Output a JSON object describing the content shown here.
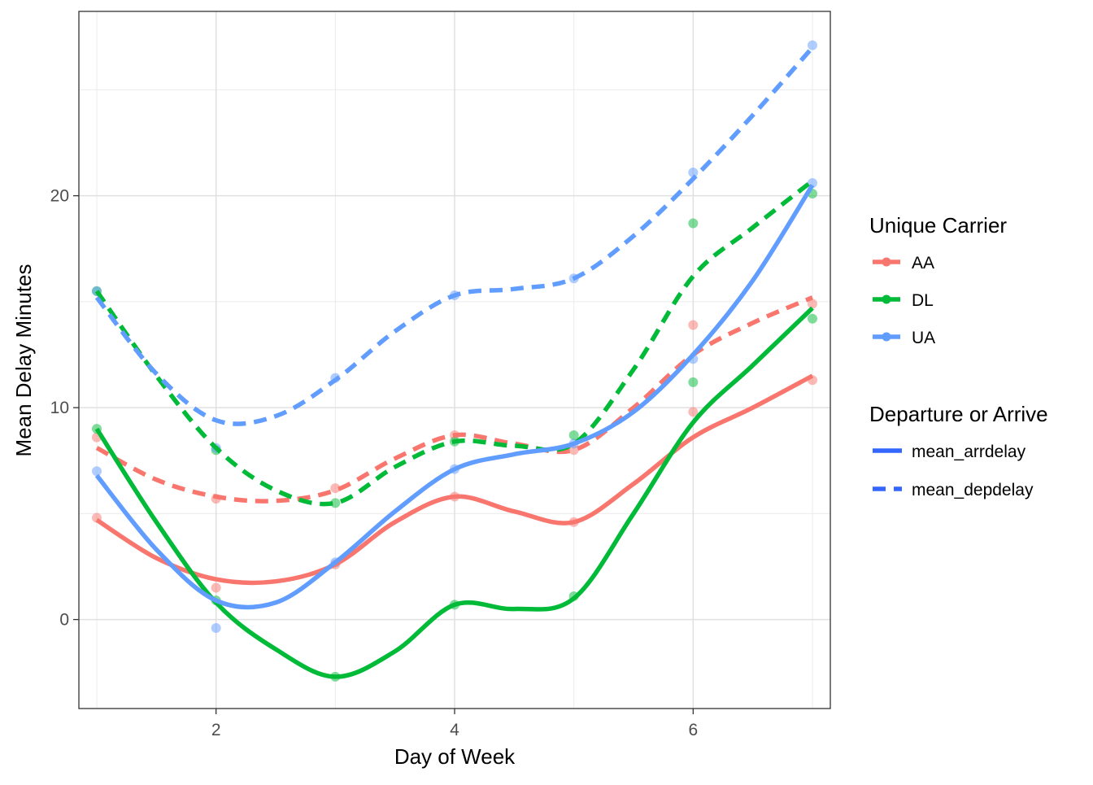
{
  "chart_data": {
    "type": "line",
    "xlabel": "Day of Week",
    "ylabel": "Mean Delay Minutes",
    "xlim": [
      0.85,
      7.15
    ],
    "ylim": [
      -4.2,
      28.7
    ],
    "x_ticks": [
      2,
      4,
      6
    ],
    "y_ticks": [
      0,
      10,
      20
    ],
    "x_tick_labels": [
      "2",
      "4",
      "6"
    ],
    "y_tick_labels": [
      "0",
      "10",
      "20"
    ],
    "grid": true,
    "legend_placement": "right",
    "carrier_legend_title": "Unique Carrier",
    "linetype_legend_title": "Departure or Arrive",
    "carriers": [
      {
        "name": "AA",
        "color": "#F8766D"
      },
      {
        "name": "DL",
        "color": "#00BA38"
      },
      {
        "name": "UA",
        "color": "#619CFF"
      }
    ],
    "linetypes": [
      {
        "name": "mean_arrdelay",
        "dash": "solid"
      },
      {
        "name": "mean_depdelay",
        "dash": "dashed"
      }
    ],
    "legend_key_color": "#3366FF",
    "x": [
      1,
      2,
      3,
      4,
      5,
      6,
      7
    ],
    "series": [
      {
        "carrier": "AA",
        "measure": "mean_arrdelay",
        "points": [
          4.8,
          1.5,
          2.6,
          5.8,
          4.6,
          9.8,
          11.3
        ],
        "smooth": [
          [
            1,
            4.7
          ],
          [
            1.5,
            2.9
          ],
          [
            2,
            1.9
          ],
          [
            2.5,
            1.8
          ],
          [
            3,
            2.6
          ],
          [
            3.5,
            4.6
          ],
          [
            4,
            5.8
          ],
          [
            4.5,
            5.1
          ],
          [
            5,
            4.6
          ],
          [
            5.5,
            6.4
          ],
          [
            6,
            8.6
          ],
          [
            6.5,
            10.0
          ],
          [
            7,
            11.5
          ]
        ]
      },
      {
        "carrier": "AA",
        "measure": "mean_depdelay",
        "points": [
          8.6,
          5.7,
          6.2,
          8.7,
          8.0,
          13.9,
          14.9
        ],
        "smooth": [
          [
            1,
            8.1
          ],
          [
            1.5,
            6.6
          ],
          [
            2,
            5.8
          ],
          [
            2.5,
            5.6
          ],
          [
            3,
            6.1
          ],
          [
            3.5,
            7.6
          ],
          [
            4,
            8.7
          ],
          [
            4.5,
            8.3
          ],
          [
            5,
            8.0
          ],
          [
            5.5,
            10.0
          ],
          [
            6,
            12.5
          ],
          [
            6.5,
            14.0
          ],
          [
            7,
            15.2
          ]
        ]
      },
      {
        "carrier": "DL",
        "measure": "mean_arrdelay",
        "points": [
          9.0,
          0.9,
          -2.7,
          0.7,
          1.1,
          11.2,
          14.2
        ],
        "smooth": [
          [
            1,
            9.0
          ],
          [
            1.5,
            4.6
          ],
          [
            2,
            0.8
          ],
          [
            2.5,
            -1.4
          ],
          [
            3,
            -2.7
          ],
          [
            3.5,
            -1.5
          ],
          [
            4,
            0.7
          ],
          [
            4.5,
            0.5
          ],
          [
            5,
            1.0
          ],
          [
            5.5,
            5.0
          ],
          [
            6,
            9.3
          ],
          [
            6.5,
            12.0
          ],
          [
            7,
            14.7
          ]
        ]
      },
      {
        "carrier": "DL",
        "measure": "mean_depdelay",
        "points": [
          15.5,
          8.0,
          5.5,
          8.4,
          8.7,
          18.7,
          20.1
        ],
        "smooth": [
          [
            1,
            15.5
          ],
          [
            1.5,
            11.5
          ],
          [
            2,
            8.1
          ],
          [
            2.5,
            6.1
          ],
          [
            3,
            5.5
          ],
          [
            3.5,
            7.2
          ],
          [
            4,
            8.4
          ],
          [
            4.5,
            8.2
          ],
          [
            5,
            8.3
          ],
          [
            5.5,
            11.8
          ],
          [
            6,
            16.2
          ],
          [
            6.5,
            18.5
          ],
          [
            7,
            20.7
          ]
        ]
      },
      {
        "carrier": "UA",
        "measure": "mean_arrdelay",
        "points": [
          7.0,
          -0.4,
          2.7,
          7.1,
          8.3,
          12.3,
          20.6
        ],
        "smooth": [
          [
            1,
            6.8
          ],
          [
            1.5,
            3.3
          ],
          [
            2,
            0.9
          ],
          [
            2.5,
            0.8
          ],
          [
            3,
            2.7
          ],
          [
            3.5,
            5.1
          ],
          [
            4,
            7.1
          ],
          [
            4.5,
            7.8
          ],
          [
            5,
            8.3
          ],
          [
            5.5,
            9.8
          ],
          [
            6,
            12.5
          ],
          [
            6.5,
            16.0
          ],
          [
            7,
            20.5
          ]
        ]
      },
      {
        "carrier": "UA",
        "measure": "mean_depdelay",
        "points": [
          15.5,
          8.1,
          11.4,
          15.3,
          16.1,
          21.1,
          27.1
        ],
        "smooth": [
          [
            1,
            15.2
          ],
          [
            1.5,
            11.6
          ],
          [
            2,
            9.4
          ],
          [
            2.5,
            9.6
          ],
          [
            3,
            11.3
          ],
          [
            3.5,
            13.6
          ],
          [
            4,
            15.3
          ],
          [
            4.5,
            15.6
          ],
          [
            5,
            16.1
          ],
          [
            5.5,
            18.1
          ],
          [
            6,
            20.8
          ],
          [
            6.5,
            23.8
          ],
          [
            7,
            27.0
          ]
        ]
      }
    ]
  }
}
